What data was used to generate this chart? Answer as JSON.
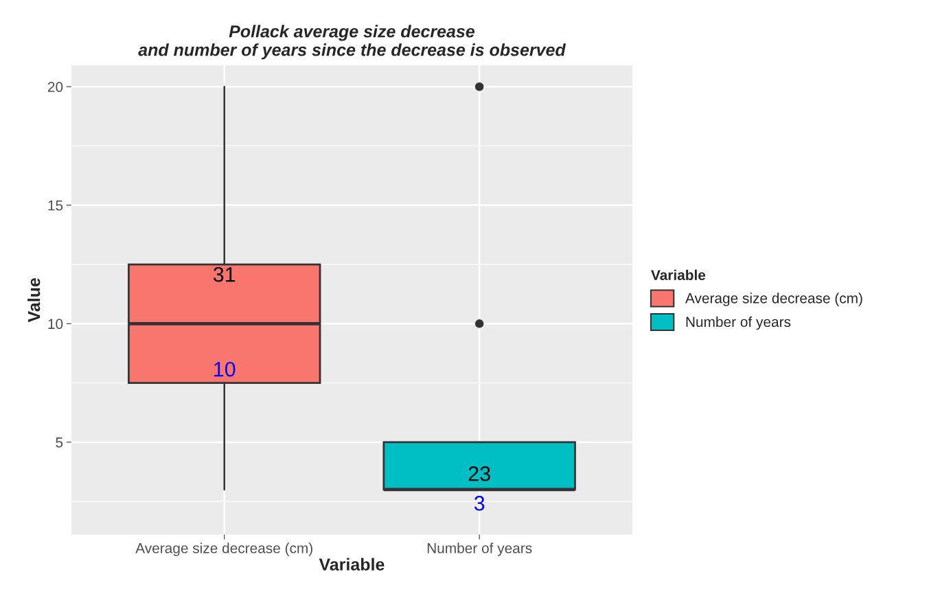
{
  "chart_data": {
    "type": "box",
    "title": "Pollack average size decrease\nand number of years since the decrease is observed",
    "xlabel": "Variable",
    "ylabel": "Value",
    "legend_title": "Variable",
    "categories": [
      "Average size decrease (cm)",
      "Number of years"
    ],
    "series": [
      {
        "name": "Average size decrease (cm)",
        "color": "#f8766d",
        "boxes": [
          {
            "low": 3,
            "q1": 7.5,
            "median": 10,
            "q3": 12.5,
            "high": 20
          },
          null
        ]
      },
      {
        "name": "Number of years",
        "color": "#00bfc4",
        "boxes": [
          null,
          {
            "low": 3,
            "q1": 3,
            "median": 3,
            "q3": 5,
            "high": 5,
            "outliers": [
              10,
              20
            ]
          }
        ]
      }
    ],
    "annotations": [
      "31",
      "10",
      "23",
      "3"
    ],
    "ylim": [
      1.1,
      20.9
    ],
    "yticks": [
      5,
      10,
      15,
      20
    ],
    "grid": true,
    "legend": "right"
  }
}
